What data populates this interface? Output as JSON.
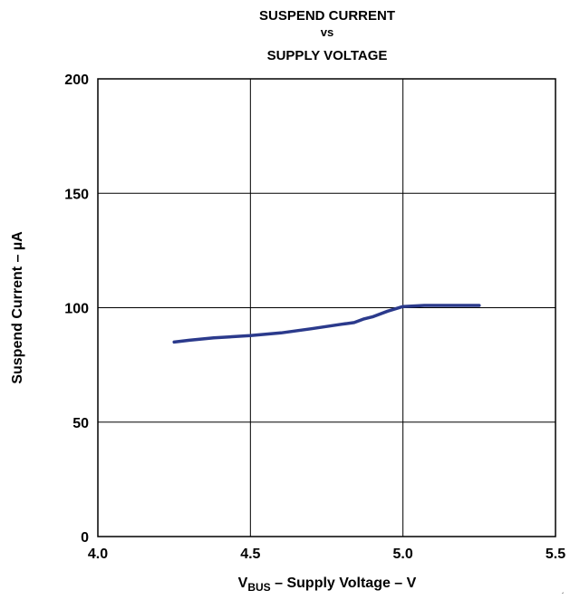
{
  "chart_data": {
    "type": "line",
    "title": [
      "SUSPEND CURRENT",
      "vs",
      "SUPPLY VOLTAGE"
    ],
    "xlabel": {
      "prefix": "V",
      "subscript": "BUS",
      "suffix": " – Supply Voltage – V"
    },
    "ylabel": "Suspend Current – µA",
    "xlim": [
      4.0,
      5.5
    ],
    "ylim": [
      0,
      200
    ],
    "x_ticks": [
      4.0,
      4.5,
      5.0,
      5.5
    ],
    "x_tick_labels": [
      "4.0",
      "4.5",
      "5.0",
      "5.5"
    ],
    "y_ticks": [
      0,
      50,
      100,
      150,
      200
    ],
    "y_tick_labels": [
      "0",
      "50",
      "100",
      "150",
      "200"
    ],
    "grid": true,
    "legend": "none",
    "series": [
      {
        "color": "#2b3a8c",
        "x": [
          4.25,
          4.3,
          4.38,
          4.5,
          4.6,
          4.7,
          4.8,
          4.84,
          4.87,
          4.9,
          4.95,
          5.0,
          5.07,
          5.25
        ],
        "y": [
          85,
          85.8,
          86.8,
          87.8,
          89,
          90.8,
          92.8,
          93.5,
          95,
          96,
          98.5,
          100.5,
          101,
          101
        ]
      }
    ]
  }
}
